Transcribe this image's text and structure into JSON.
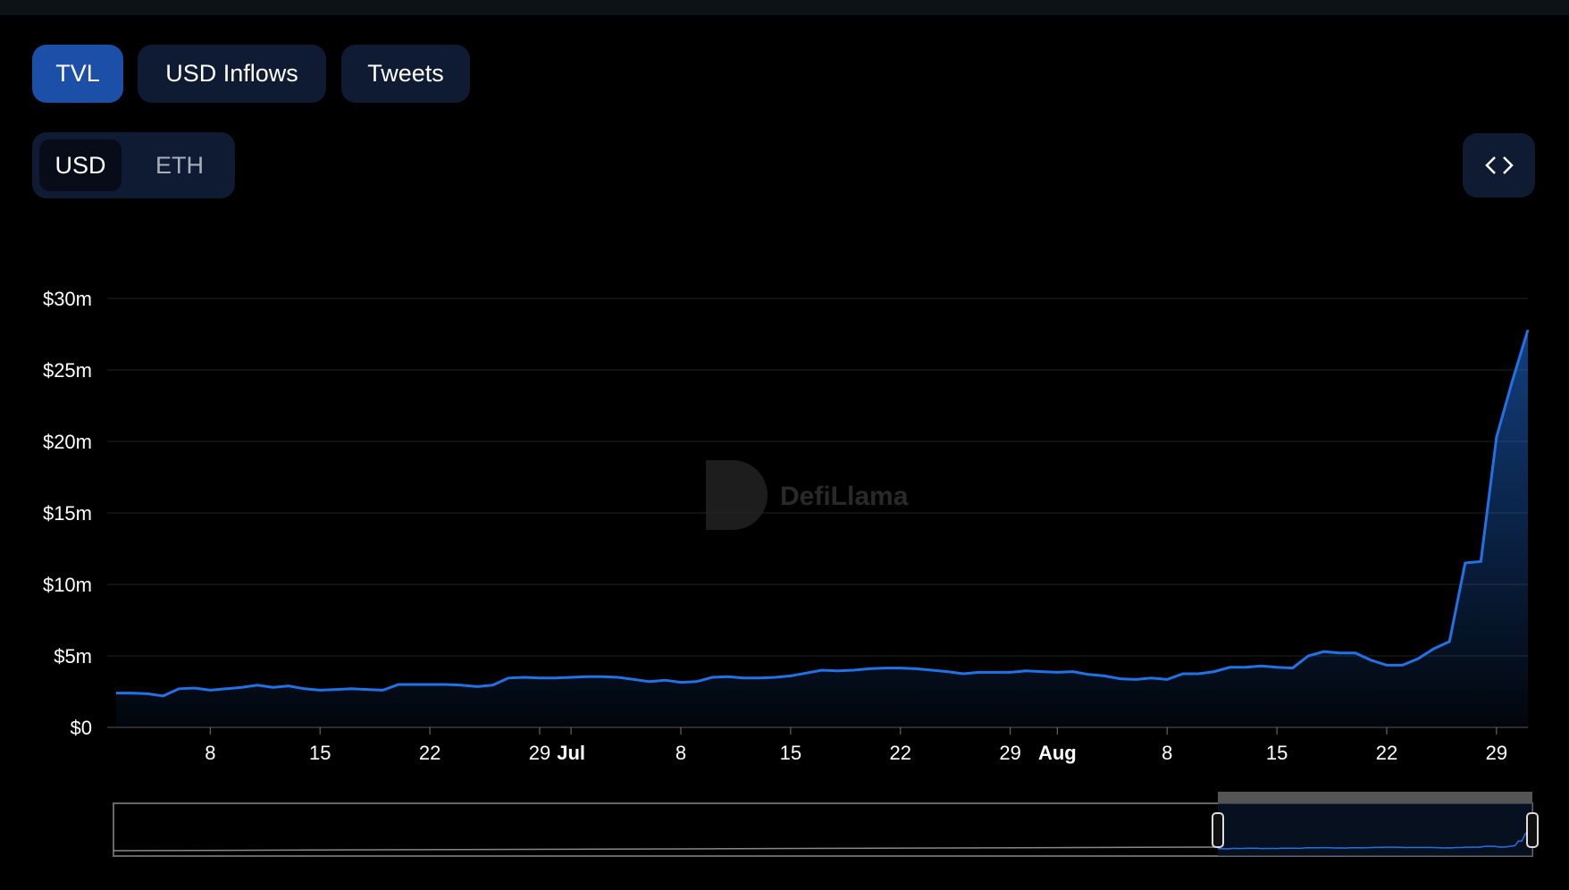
{
  "tabs": [
    "TVL",
    "USD Inflows",
    "Tweets"
  ],
  "denomination": [
    "USD",
    "ETH"
  ],
  "watermark": "DefiLlama",
  "chart_data": {
    "type": "area",
    "categories": [
      null,
      null,
      null,
      null,
      null,
      null,
      "8",
      null,
      null,
      null,
      null,
      null,
      null,
      "15",
      null,
      null,
      null,
      null,
      null,
      null,
      "22",
      null,
      null,
      null,
      null,
      null,
      null,
      "29",
      null,
      "Jul",
      null,
      null,
      null,
      null,
      null,
      null,
      "8",
      null,
      null,
      null,
      null,
      null,
      null,
      "15",
      null,
      null,
      null,
      null,
      null,
      null,
      "22",
      null,
      null,
      null,
      null,
      null,
      null,
      "29",
      null,
      null,
      "Aug",
      null,
      null,
      null,
      null,
      null,
      null,
      "8",
      null,
      null,
      null,
      null,
      null,
      null,
      "15",
      null,
      null,
      null,
      null,
      null,
      null,
      "22",
      null,
      null,
      null,
      null,
      null,
      null,
      "29",
      null,
      null
    ],
    "values": [
      2.4,
      2.4,
      2.35,
      2.2,
      2.7,
      2.75,
      2.6,
      2.7,
      2.8,
      2.95,
      2.8,
      2.9,
      2.7,
      2.6,
      2.65,
      2.7,
      2.65,
      2.6,
      3.0,
      3.0,
      3.0,
      3.0,
      2.95,
      2.85,
      2.95,
      3.45,
      3.5,
      3.45,
      3.45,
      3.5,
      3.55,
      3.55,
      3.5,
      3.35,
      3.2,
      3.3,
      3.15,
      3.2,
      3.5,
      3.55,
      3.45,
      3.45,
      3.5,
      3.6,
      3.8,
      4.0,
      3.95,
      4.0,
      4.1,
      4.15,
      4.15,
      4.1,
      4.0,
      3.9,
      3.75,
      3.85,
      3.85,
      3.85,
      3.95,
      3.9,
      3.85,
      3.9,
      3.7,
      3.6,
      3.4,
      3.35,
      3.45,
      3.35,
      3.75,
      3.75,
      3.9,
      4.2,
      4.2,
      4.3,
      4.2,
      4.15,
      5.0,
      5.3,
      5.2,
      5.2,
      4.7,
      4.35,
      4.35,
      4.8,
      5.5,
      6.0,
      11.5,
      11.6,
      20.3,
      24.2,
      27.8
    ],
    "color": "#2172e5",
    "ylim": [
      0,
      30
    ],
    "yticks": [
      {
        "value": 0,
        "label": "$0"
      },
      {
        "value": 5,
        "label": "$5m"
      },
      {
        "value": 10,
        "label": "$10m"
      },
      {
        "value": 15,
        "label": "$15m"
      },
      {
        "value": 20,
        "label": "$20m"
      },
      {
        "value": 25,
        "label": "$25m"
      },
      {
        "value": 30,
        "label": "$30m"
      }
    ],
    "grid": true
  }
}
